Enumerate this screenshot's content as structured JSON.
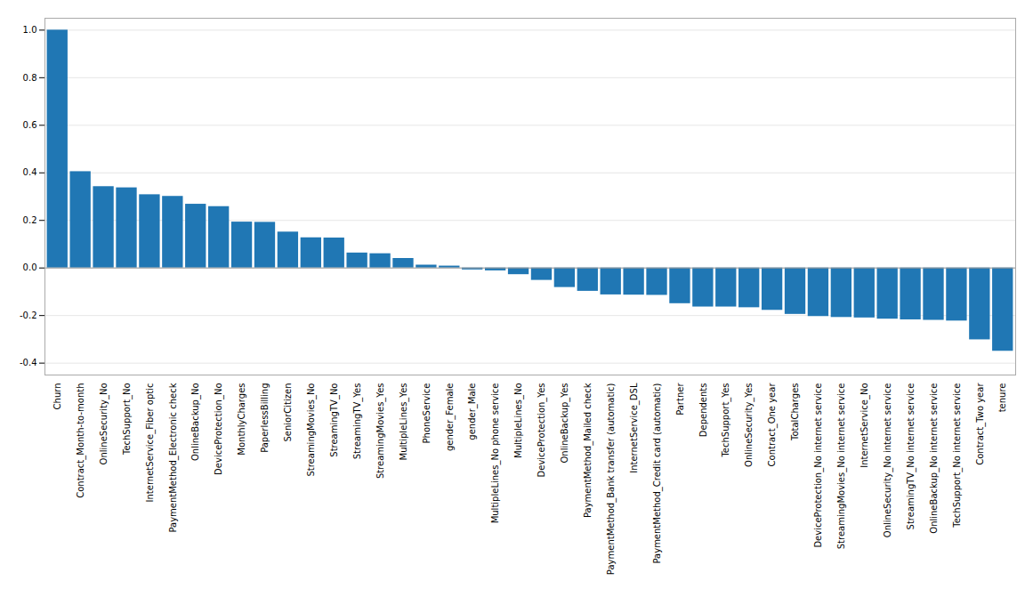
{
  "chart_data": {
    "type": "bar",
    "categories": [
      "Churn",
      "Contract_Month-to-month",
      "OnlineSecurity_No",
      "TechSupport_No",
      "InternetService_Fiber optic",
      "PaymentMethod_Electronic check",
      "OnlineBackup_No",
      "DeviceProtection_No",
      "MonthlyCharges",
      "PaperlessBilling",
      "SeniorCitizen",
      "StreamingMovies_No",
      "StreamingTV_No",
      "StreamingTV_Yes",
      "StreamingMovies_Yes",
      "MultipleLines_Yes",
      "PhoneService",
      "gender_Female",
      "gender_Male",
      "MultipleLines_No phone service",
      "MultipleLines_No",
      "DeviceProtection_Yes",
      "OnlineBackup_Yes",
      "PaymentMethod_Mailed check",
      "PaymentMethod_Bank transfer (automatic)",
      "InternetService_DSL",
      "PaymentMethod_Credit card (automatic)",
      "Partner",
      "Dependents",
      "TechSupport_Yes",
      "OnlineSecurity_Yes",
      "Contract_One year",
      "TotalCharges",
      "DeviceProtection_No internet service",
      "StreamingMovies_No internet service",
      "InternetService_No",
      "OnlineSecurity_No internet service",
      "StreamingTV_No internet service",
      "OnlineBackup_No internet service",
      "TechSupport_No internet service",
      "Contract_Two year",
      "tenure"
    ],
    "values": [
      1.0,
      0.405,
      0.342,
      0.337,
      0.308,
      0.301,
      0.268,
      0.258,
      0.193,
      0.192,
      0.151,
      0.127,
      0.126,
      0.063,
      0.06,
      0.04,
      0.012,
      0.008,
      -0.008,
      -0.012,
      -0.028,
      -0.052,
      -0.082,
      -0.098,
      -0.113,
      -0.114,
      -0.115,
      -0.15,
      -0.164,
      -0.164,
      -0.167,
      -0.178,
      -0.195,
      -0.204,
      -0.208,
      -0.21,
      -0.215,
      -0.218,
      -0.22,
      -0.223,
      -0.302,
      -0.35
    ],
    "color": "#2077b4",
    "ylim": [
      -0.45,
      1.05
    ],
    "yticks": [
      -0.4,
      -0.2,
      {
        "value": 0,
        "label": "0.0"
      },
      0.2,
      0.4,
      0.6,
      0.8,
      {
        "value": 1.0,
        "label": "1.0"
      }
    ],
    "grid": true
  }
}
